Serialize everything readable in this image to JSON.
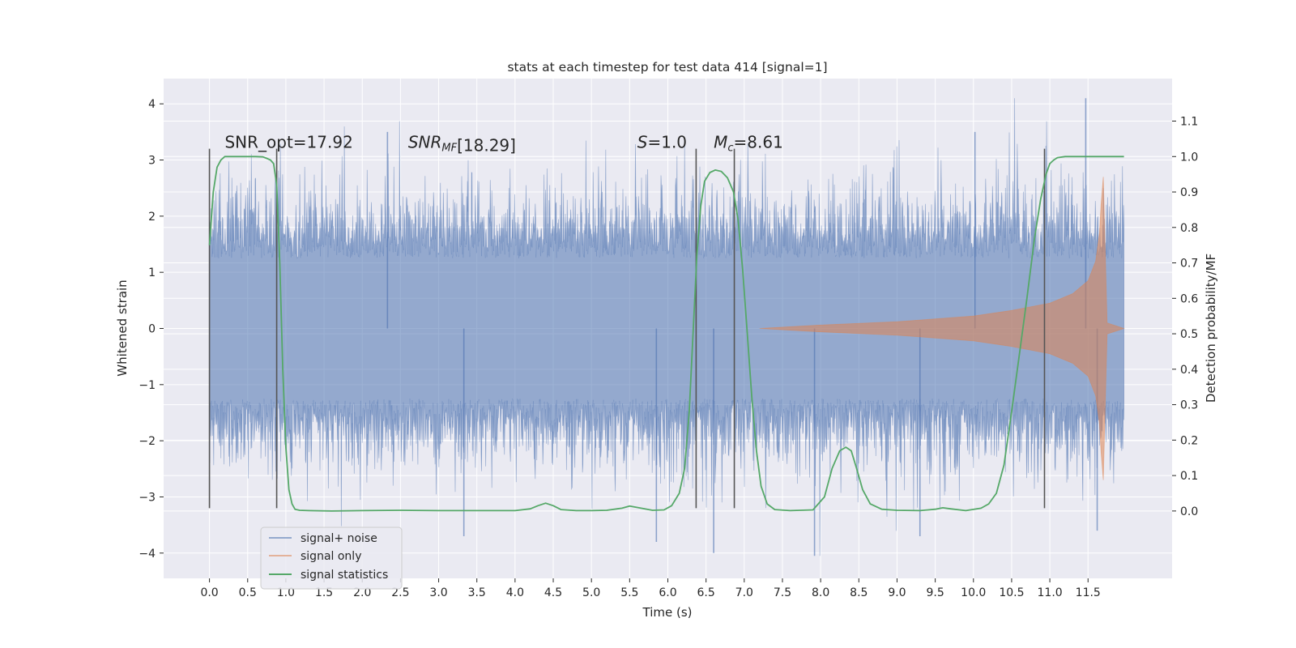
{
  "chart_data": {
    "type": "line",
    "title": "stats at each timestep for test data 414 [signal=1]",
    "xlabel": "Time (s)",
    "ylabel": "Whitened strain",
    "y2label": "Detection probability/MF",
    "xlim": [
      -0.6,
      12.6
    ],
    "ylim": [
      -4.45,
      4.45
    ],
    "y2lim": [
      -0.19,
      1.22
    ],
    "x_ticks": [
      0.0,
      0.5,
      1.0,
      1.5,
      2.0,
      2.5,
      3.0,
      3.5,
      4.0,
      4.5,
      5.0,
      5.5,
      6.0,
      6.5,
      7.0,
      7.5,
      8.0,
      8.5,
      9.0,
      9.5,
      10.0,
      10.5,
      11.0,
      11.5
    ],
    "x_tick_labels": [
      "0.0",
      "0.5",
      "1.0",
      "1.5",
      "2.0",
      "2.5",
      "3.0",
      "3.5",
      "4.0",
      "4.5",
      "5.0",
      "5.5",
      "6.0",
      "6.5",
      "7.0",
      "7.5",
      "8.0",
      "8.5",
      "9.0",
      "9.5",
      "10.0",
      "10.5",
      "11.0",
      "11.5"
    ],
    "y_ticks": [
      -4,
      -3,
      -2,
      -1,
      0,
      1,
      2,
      3,
      4
    ],
    "y_tick_labels": [
      "−4",
      "−3",
      "−2",
      "−1",
      "0",
      "1",
      "2",
      "3",
      "4"
    ],
    "y2_ticks": [
      0.0,
      0.1,
      0.2,
      0.3,
      0.4,
      0.5,
      0.6,
      0.7,
      0.8,
      0.9,
      1.0,
      1.1
    ],
    "y2_tick_labels": [
      "0.0",
      "0.1",
      "0.2",
      "0.3",
      "0.4",
      "0.5",
      "0.6",
      "0.7",
      "0.8",
      "0.9",
      "1.0",
      "1.1"
    ],
    "grid": true,
    "legend_position": "lower-left",
    "annotations": [
      {
        "text": "SNR_opt=17.92",
        "x": 0.2,
        "y": 3.3
      },
      {
        "text": "SNR_MF=[18.29]",
        "x": 2.6,
        "y": 3.3
      },
      {
        "text": "S=1.0",
        "x": 5.6,
        "y": 3.3
      },
      {
        "text": "M_c=8.61",
        "x": 6.6,
        "y": 3.3
      }
    ],
    "vertical_lines": [
      {
        "x": 0.0,
        "ymin": -3.2,
        "ymax": 3.2
      },
      {
        "x": 0.88,
        "ymin": -3.2,
        "ymax": 3.2
      },
      {
        "x": 6.37,
        "ymin": -3.2,
        "ymax": 3.2
      },
      {
        "x": 6.87,
        "ymin": -3.2,
        "ymax": 3.2
      },
      {
        "x": 10.93,
        "ymin": -3.2,
        "ymax": 3.2
      }
    ],
    "series": [
      {
        "name": "signal+ noise",
        "color": "#4c72b0",
        "style": "dense noise trace, whitened strain, roughly Gaussian with envelope about ±1.3 and spikes to ±4",
        "x_range": [
          0.0,
          11.97
        ],
        "envelope_typical": [
          -1.3,
          1.3
        ],
        "max_spike": 4.1,
        "min_spike": -4.05
      },
      {
        "name": "signal only",
        "color": "#dd8452",
        "style": "chirp rising in amplitude until merger",
        "x": [
          7.2,
          8.0,
          9.0,
          10.0,
          10.5,
          11.0,
          11.3,
          11.5,
          11.6,
          11.65,
          11.67,
          11.7,
          11.75,
          11.97
        ],
        "amplitude": [
          0.0,
          0.06,
          0.12,
          0.22,
          0.32,
          0.45,
          0.62,
          0.85,
          1.2,
          1.7,
          2.2,
          2.7,
          0.1,
          0.0
        ]
      },
      {
        "name": "signal statistics",
        "color": "#55a868",
        "axis": "right",
        "x": [
          0.0,
          0.05,
          0.1,
          0.15,
          0.2,
          0.3,
          0.4,
          0.5,
          0.6,
          0.7,
          0.75,
          0.8,
          0.84,
          0.88,
          0.92,
          0.96,
          1.0,
          1.04,
          1.08,
          1.12,
          1.18,
          1.3,
          1.6,
          2.0,
          2.5,
          3.0,
          3.5,
          4.0,
          4.2,
          4.3,
          4.4,
          4.5,
          4.6,
          4.8,
          5.0,
          5.2,
          5.4,
          5.5,
          5.6,
          5.8,
          5.95,
          6.05,
          6.15,
          6.22,
          6.28,
          6.33,
          6.38,
          6.43,
          6.48,
          6.55,
          6.62,
          6.7,
          6.78,
          6.86,
          6.92,
          6.98,
          7.04,
          7.1,
          7.16,
          7.22,
          7.3,
          7.4,
          7.6,
          7.9,
          8.05,
          8.15,
          8.25,
          8.33,
          8.4,
          8.47,
          8.55,
          8.65,
          8.8,
          9.0,
          9.3,
          9.5,
          9.6,
          9.7,
          9.9,
          10.1,
          10.2,
          10.3,
          10.4,
          10.5,
          10.6,
          10.7,
          10.8,
          10.88,
          10.95,
          11.0,
          11.05,
          11.1,
          11.2,
          11.4,
          11.6,
          11.8,
          11.97
        ],
        "y": [
          0.75,
          0.9,
          0.97,
          0.99,
          1.0,
          1.0,
          1.0,
          1.0,
          1.0,
          0.999,
          0.995,
          0.99,
          0.98,
          0.92,
          0.7,
          0.4,
          0.18,
          0.06,
          0.02,
          0.005,
          0.002,
          0.001,
          0.0,
          0.001,
          0.002,
          0.001,
          0.001,
          0.001,
          0.006,
          0.015,
          0.022,
          0.015,
          0.004,
          0.001,
          0.001,
          0.002,
          0.008,
          0.014,
          0.01,
          0.002,
          0.003,
          0.015,
          0.05,
          0.12,
          0.28,
          0.5,
          0.72,
          0.86,
          0.93,
          0.955,
          0.962,
          0.958,
          0.94,
          0.9,
          0.82,
          0.68,
          0.5,
          0.32,
          0.17,
          0.07,
          0.02,
          0.004,
          0.001,
          0.003,
          0.04,
          0.12,
          0.17,
          0.18,
          0.17,
          0.12,
          0.06,
          0.02,
          0.005,
          0.002,
          0.001,
          0.005,
          0.009,
          0.006,
          0.001,
          0.008,
          0.02,
          0.05,
          0.13,
          0.28,
          0.44,
          0.6,
          0.77,
          0.88,
          0.95,
          0.98,
          0.99,
          0.997,
          1.0,
          1.0,
          1.0,
          1.0,
          1.0
        ]
      }
    ]
  }
}
